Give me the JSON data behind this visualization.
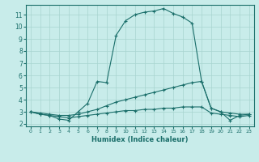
{
  "xlabel": "Humidex (Indice chaleur)",
  "bg_color": "#c8ecea",
  "grid_color": "#a8d4d0",
  "line_color": "#1a6e6a",
  "xlim": [
    -0.5,
    23.5
  ],
  "ylim": [
    1.8,
    11.8
  ],
  "xticks": [
    0,
    1,
    2,
    3,
    4,
    5,
    6,
    7,
    8,
    9,
    10,
    11,
    12,
    13,
    14,
    15,
    16,
    17,
    18,
    19,
    20,
    21,
    22,
    23
  ],
  "yticks": [
    2,
    3,
    4,
    5,
    6,
    7,
    8,
    9,
    10,
    11
  ],
  "line1_x": [
    0,
    1,
    2,
    3,
    4,
    5,
    6,
    7,
    8,
    9,
    10,
    11,
    12,
    13,
    14,
    15,
    16,
    17,
    18,
    19,
    20,
    21,
    22,
    23
  ],
  "line1_y": [
    3.0,
    2.8,
    2.7,
    2.4,
    2.3,
    3.0,
    3.7,
    5.5,
    5.4,
    9.3,
    10.5,
    11.0,
    11.2,
    11.3,
    11.5,
    11.1,
    10.8,
    10.3,
    5.5,
    3.3,
    3.0,
    2.3,
    2.7,
    2.8
  ],
  "line2_x": [
    0,
    1,
    2,
    3,
    4,
    5,
    6,
    7,
    8,
    9,
    10,
    11,
    12,
    13,
    14,
    15,
    16,
    17,
    18,
    19,
    20,
    21,
    22,
    23
  ],
  "line2_y": [
    3.0,
    2.9,
    2.8,
    2.7,
    2.7,
    2.8,
    3.0,
    3.2,
    3.5,
    3.8,
    4.0,
    4.2,
    4.4,
    4.6,
    4.8,
    5.0,
    5.2,
    5.4,
    5.5,
    3.3,
    3.0,
    2.9,
    2.8,
    2.8
  ],
  "line3_x": [
    0,
    1,
    2,
    3,
    4,
    5,
    6,
    7,
    8,
    9,
    10,
    11,
    12,
    13,
    14,
    15,
    16,
    17,
    18,
    19,
    20,
    21,
    22,
    23
  ],
  "line3_y": [
    3.0,
    2.8,
    2.7,
    2.6,
    2.5,
    2.6,
    2.7,
    2.8,
    2.9,
    3.0,
    3.1,
    3.1,
    3.2,
    3.2,
    3.3,
    3.3,
    3.4,
    3.4,
    3.4,
    2.9,
    2.8,
    2.7,
    2.6,
    2.7
  ]
}
